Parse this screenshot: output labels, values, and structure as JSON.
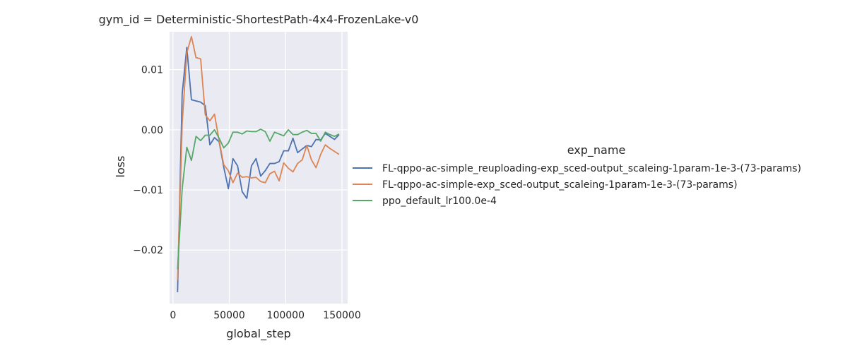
{
  "chart_data": {
    "type": "line",
    "title": "gym_id = Deterministic-ShortestPath-4x4-FrozenLake-v0",
    "xlabel": "global_step",
    "ylabel": "loss",
    "xlim": [
      -3000,
      155000
    ],
    "ylim": [
      -0.0289,
      0.0163
    ],
    "x_ticks": [
      0,
      50000,
      100000,
      150000
    ],
    "x_tick_labels": [
      "0",
      "50000",
      "100000",
      "150000"
    ],
    "y_ticks": [
      -0.02,
      -0.01,
      0.0,
      0.01
    ],
    "y_tick_labels": [
      "−0.02",
      "−0.01",
      "0.00",
      "0.01"
    ],
    "grid": true,
    "legend": {
      "title": "exp_name",
      "placement": "right"
    },
    "series": [
      {
        "name": "FL-qppo-ac-simple_reuploading-exp_sced-output_scaleing-1param-1e-3-(73-params)",
        "color": "#4c72b0",
        "x": [
          4096,
          8192,
          12288,
          16384,
          20480,
          24576,
          28672,
          32768,
          36864,
          40960,
          45056,
          49152,
          53248,
          57344,
          61440,
          65536,
          69632,
          73728,
          77824,
          81920,
          86016,
          90112,
          94208,
          98304,
          102400,
          106496,
          110592,
          114688,
          118784,
          122880,
          126976,
          131072,
          135168,
          139264,
          143360,
          147456
        ],
        "y": [
          -0.027,
          0.006,
          0.0137,
          0.005,
          0.0048,
          0.0046,
          0.004,
          -0.0025,
          -0.0013,
          -0.002,
          -0.0062,
          -0.0098,
          -0.0048,
          -0.006,
          -0.0103,
          -0.0114,
          -0.006,
          -0.0048,
          -0.0077,
          -0.0068,
          -0.0056,
          -0.0056,
          -0.0053,
          -0.0035,
          -0.0035,
          -0.0014,
          -0.0038,
          -0.0032,
          -0.0026,
          -0.0028,
          -0.0016,
          -0.0017,
          -0.0006,
          -0.0011,
          -0.0016,
          -0.0008
        ]
      },
      {
        "name": "FL-qppo-ac-simple-exp_sced-output_scaleing-1param-1e-3-(73-params)",
        "color": "#dd8452",
        "x": [
          4096,
          8192,
          12288,
          16384,
          20480,
          24576,
          28672,
          32768,
          36864,
          40960,
          45056,
          49152,
          53248,
          57344,
          61440,
          65536,
          69632,
          73728,
          77824,
          81920,
          86016,
          90112,
          94208,
          98304,
          102400,
          106496,
          110592,
          114688,
          118784,
          122880,
          126976,
          131072,
          135168,
          139264,
          143360,
          147456
        ],
        "y": [
          -0.025,
          0.001,
          0.0128,
          0.0155,
          0.012,
          0.0118,
          0.0025,
          0.0015,
          0.0026,
          -0.0018,
          -0.0058,
          -0.0068,
          -0.0088,
          -0.0072,
          -0.0079,
          -0.0078,
          -0.008,
          -0.0079,
          -0.0086,
          -0.0088,
          -0.0073,
          -0.0069,
          -0.0085,
          -0.0055,
          -0.0064,
          -0.007,
          -0.0056,
          -0.005,
          -0.0026,
          -0.005,
          -0.0063,
          -0.0041,
          -0.0025,
          -0.0031,
          -0.0036,
          -0.0041
        ]
      },
      {
        "name": "ppo_default_lr100.0e-4",
        "color": "#55a868",
        "x": [
          4096,
          8192,
          12288,
          16384,
          20480,
          24576,
          28672,
          32768,
          36864,
          40960,
          45056,
          49152,
          53248,
          57344,
          61440,
          65536,
          69632,
          73728,
          77824,
          81920,
          86016,
          90112,
          94208,
          98304,
          102400,
          106496,
          110592,
          114688,
          118784,
          122880,
          126976,
          131072,
          135168,
          139264,
          143360,
          147456
        ],
        "y": [
          -0.0232,
          -0.0098,
          -0.0029,
          -0.0051,
          -0.0011,
          -0.0018,
          -0.0009,
          -0.0009,
          0.0,
          -0.0014,
          -0.003,
          -0.0022,
          -0.0004,
          -0.0004,
          -0.0007,
          -0.0002,
          -0.0003,
          -0.0003,
          0.0001,
          -0.0003,
          -0.0019,
          -0.0004,
          -0.0007,
          -0.001,
          0.0,
          -0.0008,
          -0.0008,
          -0.0004,
          -0.0001,
          -0.0006,
          -0.0006,
          -0.0019,
          -0.0004,
          -0.0008,
          -0.0011,
          -0.0007
        ]
      }
    ]
  }
}
